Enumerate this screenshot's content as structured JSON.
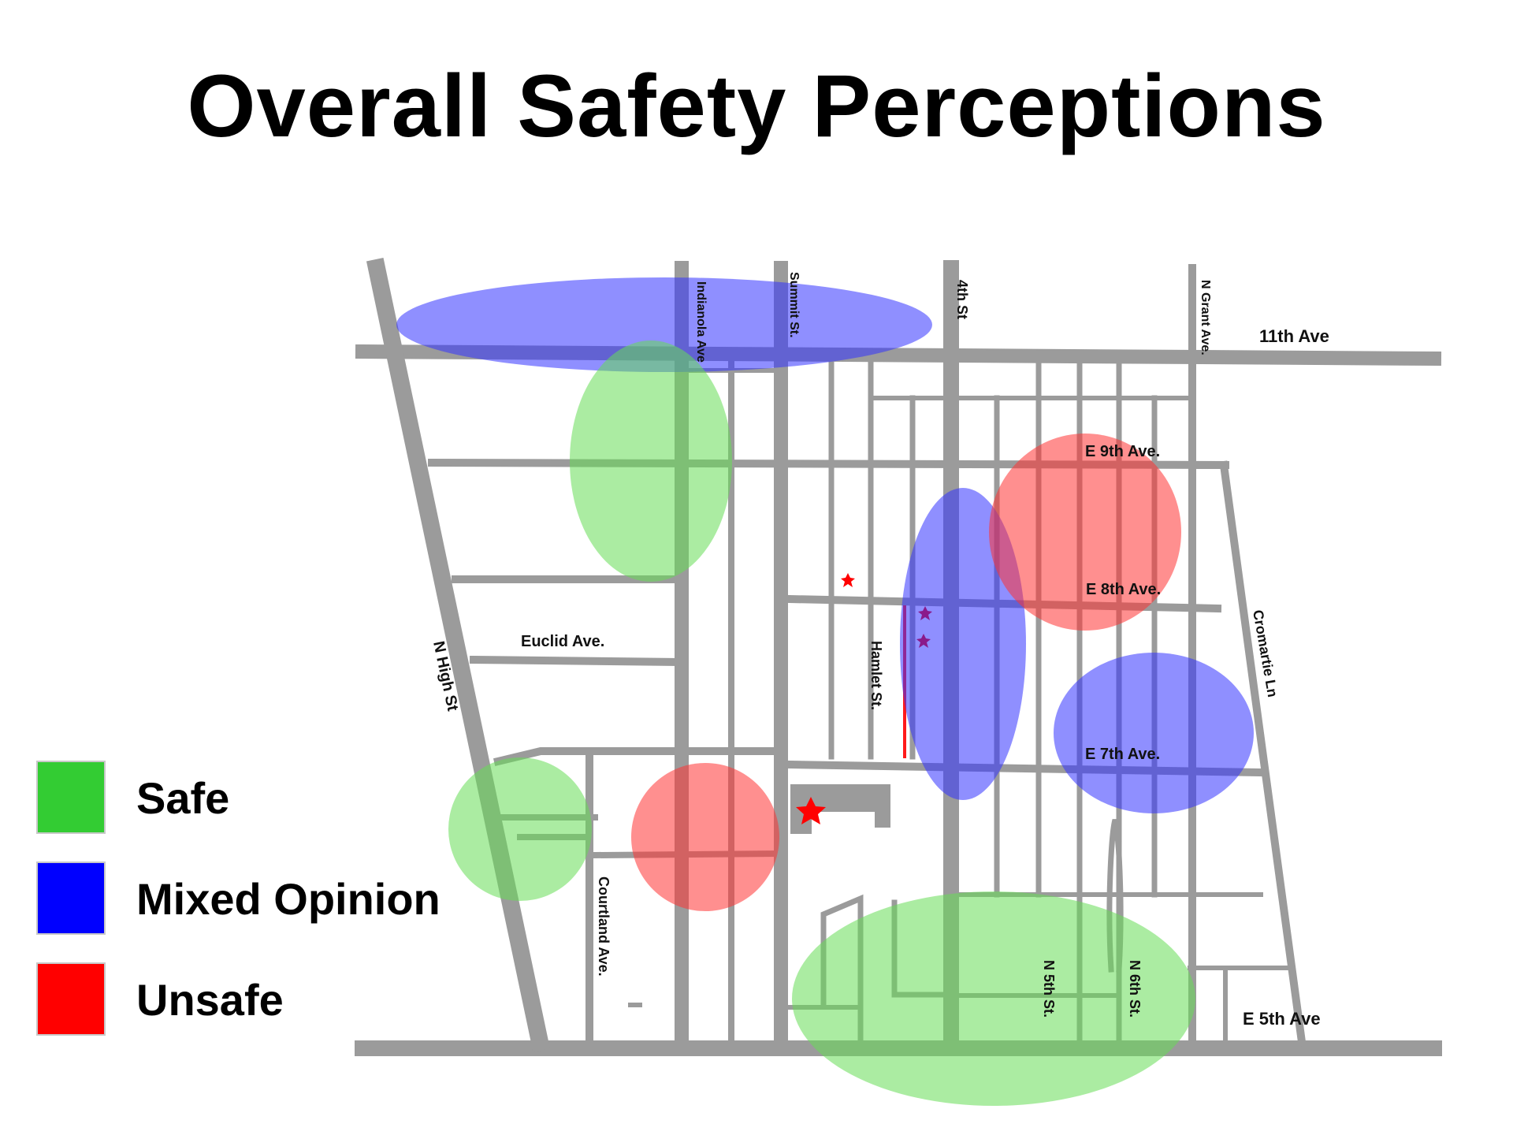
{
  "title": "Overall Safety Perceptions",
  "streets": {
    "n_high": "N High St",
    "indianola": "Indianola Ave",
    "summit": "Summit St.",
    "fourth": "4th St",
    "n_grant": "N Grant Ave.",
    "eleventh": "11th Ave",
    "e9th": "E 9th Ave.",
    "e8th": "E 8th Ave.",
    "e7th": "E 7th Ave.",
    "e5th": "E 5th Ave",
    "euclid": "Euclid Ave.",
    "hamlet": "Hamlet St.",
    "courtland": "Courtland Ave.",
    "cromartie": "Cromartie Ln",
    "n5th": "N 5th St.",
    "n6th": "N 6th St."
  },
  "legend": [
    {
      "label": "Safe",
      "color": "#33cc33"
    },
    {
      "label": "Mixed Opinion",
      "color": "#0000ff"
    },
    {
      "label": "Unsafe",
      "color": "#ff0000"
    }
  ],
  "zone_colors": {
    "safe": "#66dd55",
    "mixed": "#3333ff",
    "unsafe": "#ff3333"
  },
  "road_color": "#9b9b9b"
}
